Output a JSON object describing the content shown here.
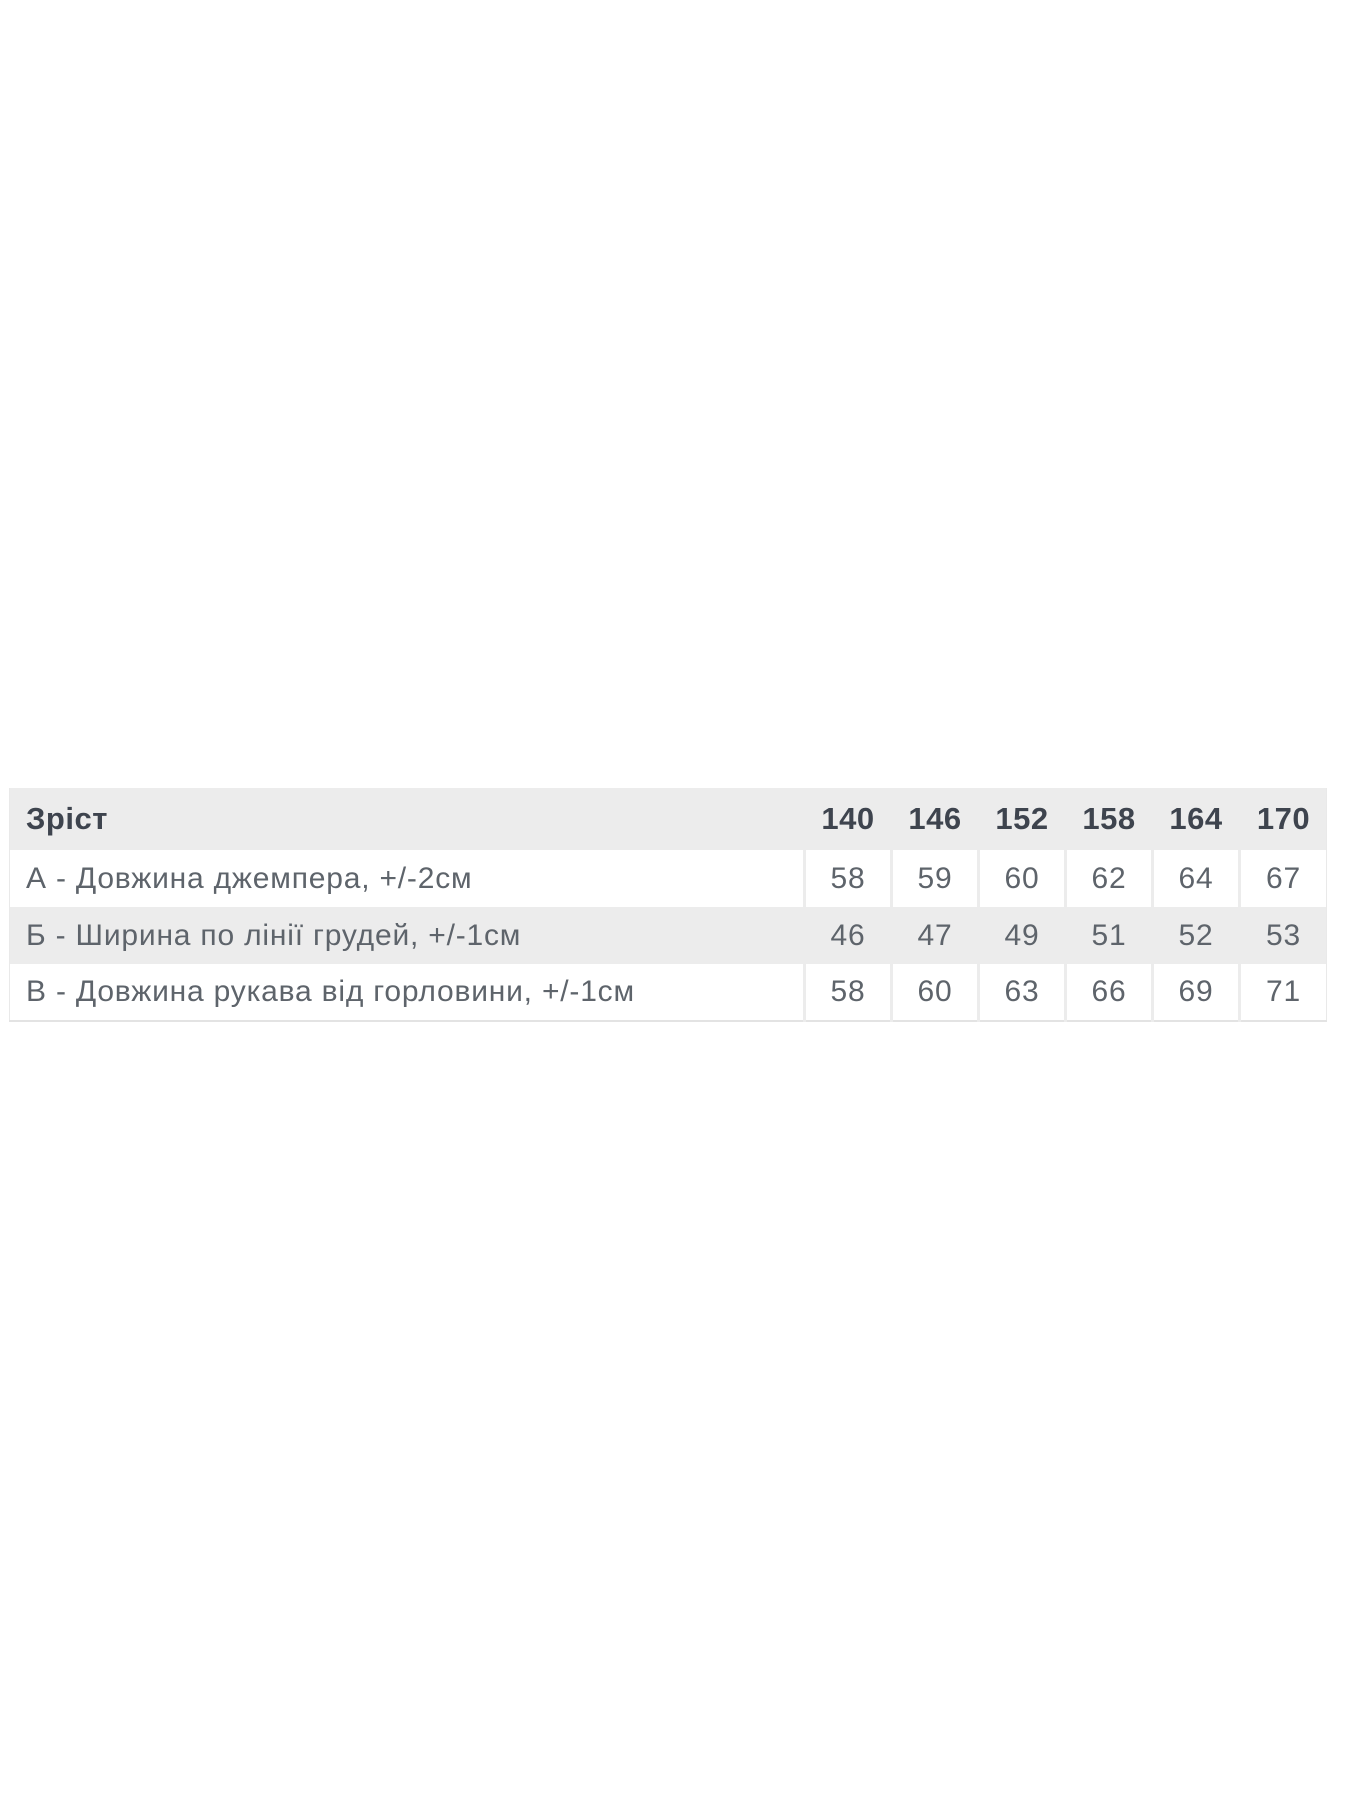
{
  "colors": {
    "page_bg": "#ffffff",
    "stripe_bg": "#ececec",
    "header_text": "#3e444e",
    "body_text": "#5e646b",
    "table_border": "#e3e3e3"
  },
  "size_table": {
    "header": {
      "metric_label": "Зріст",
      "sizes": [
        "140",
        "146",
        "152",
        "158",
        "164",
        "170"
      ]
    },
    "rows": [
      {
        "label": "А - Довжина джемпера, +/-2см",
        "values": [
          "58",
          "59",
          "60",
          "62",
          "64",
          "67"
        ]
      },
      {
        "label": "Б - Ширина по лінії грудей, +/-1см",
        "values": [
          "46",
          "47",
          "49",
          "51",
          "52",
          "53"
        ]
      },
      {
        "label": "В - Довжина рукава від горловини, +/-1см",
        "values": [
          "58",
          "60",
          "63",
          "66",
          "69",
          "71"
        ]
      }
    ]
  }
}
